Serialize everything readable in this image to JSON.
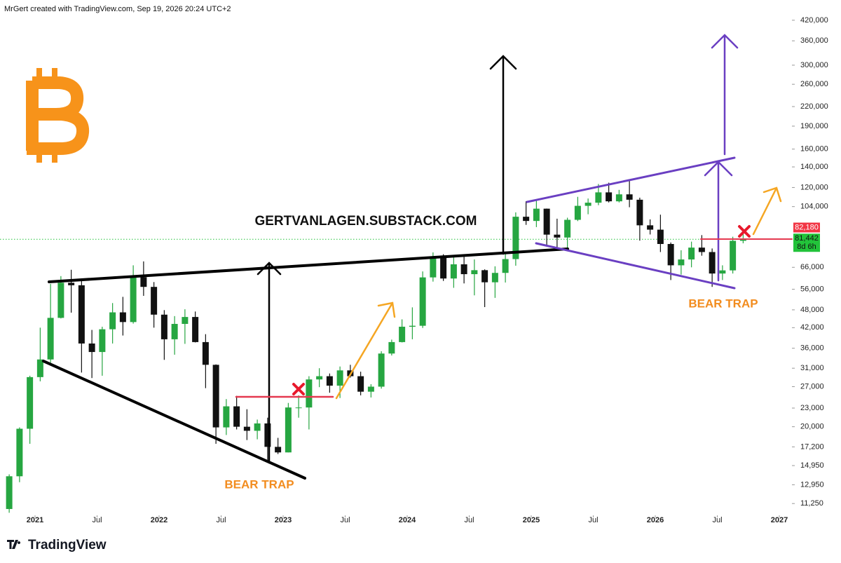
{
  "header": "MrGert created with TradingView.com, Sep 19, 2026 20:24 UTC+2",
  "footer_logo": "TradingView",
  "chart_data": {
    "type": "candlestick",
    "log_scale": true,
    "up_color": "#26a641",
    "down_color": "#111111",
    "x": [
      "2020-10",
      "2020-11",
      "2020-12",
      "2021-01",
      "2021-02",
      "2021-03",
      "2021-04",
      "2021-05",
      "2021-06",
      "2021-07",
      "2021-08",
      "2021-09",
      "2021-10",
      "2021-11",
      "2021-12",
      "2022-01",
      "2022-02",
      "2022-03",
      "2022-04",
      "2022-05",
      "2022-06",
      "2022-07",
      "2022-08",
      "2022-09",
      "2022-10",
      "2022-11",
      "2022-12",
      "2023-01",
      "2023-02",
      "2023-03",
      "2023-04",
      "2023-05",
      "2023-06",
      "2023-07",
      "2023-08",
      "2023-09",
      "2023-10",
      "2023-11",
      "2023-12",
      "2024-01",
      "2024-02",
      "2024-03",
      "2024-04",
      "2024-05",
      "2024-06",
      "2024-07",
      "2024-08",
      "2024-09",
      "2024-10",
      "2024-11",
      "2024-12",
      "2025-01",
      "2025-02",
      "2025-03",
      "2025-04",
      "2025-05",
      "2025-06",
      "2025-07",
      "2025-08",
      "2025-09",
      "2025-10",
      "2025-11",
      "2025-12",
      "2026-01",
      "2026-02",
      "2026-03",
      "2026-04",
      "2026-05",
      "2026-06",
      "2026-07",
      "2026-08",
      "2026-09"
    ],
    "open": [
      10800,
      13800,
      19700,
      29000,
      33100,
      45200,
      58800,
      57700,
      37300,
      35000,
      41500,
      47100,
      43800,
      61300,
      57000,
      46300,
      38500,
      43200,
      45500,
      37700,
      31800,
      19900,
      23300,
      20000,
      19400,
      20500,
      17200,
      16500,
      23100,
      23100,
      28500,
      29200,
      27200,
      30500,
      29200,
      26000,
      27000,
      34600,
      37700,
      42300,
      42600,
      61200,
      71300,
      60700,
      67500,
      62700,
      64600,
      59000,
      63300,
      70200,
      96400,
      93400,
      102400,
      84300,
      82500,
      94200,
      104600,
      107100,
      115700,
      108200,
      114000,
      109500,
      90400,
      87500,
      78600,
      67000,
      70000,
      76500,
      74000,
      63000,
      64500,
      80500
    ],
    "high": [
      14000,
      19900,
      29300,
      42000,
      58300,
      61800,
      64800,
      59500,
      41300,
      42300,
      50500,
      52900,
      67000,
      69000,
      59100,
      47900,
      45800,
      48200,
      47400,
      40000,
      31900,
      24600,
      25200,
      22800,
      21100,
      21400,
      18400,
      23900,
      25300,
      29200,
      31000,
      29800,
      31400,
      31800,
      30200,
      27500,
      35200,
      38400,
      44700,
      48900,
      64000,
      73800,
      72800,
      71900,
      72000,
      70000,
      65000,
      66500,
      73600,
      99600,
      108300,
      109500,
      102500,
      95000,
      95700,
      111900,
      110500,
      123200,
      124400,
      117900,
      126200,
      111200,
      94500,
      97900,
      79500,
      75000,
      80000,
      84000,
      76000,
      67000,
      83000,
      85000
    ],
    "low": [
      10500,
      13200,
      17600,
      28100,
      32300,
      45000,
      47000,
      30000,
      28800,
      29300,
      37300,
      39600,
      43300,
      53300,
      42000,
      33000,
      34300,
      37200,
      37600,
      26700,
      17600,
      18800,
      19600,
      18100,
      18200,
      15500,
      16300,
      16500,
      21400,
      19600,
      26900,
      25800,
      24800,
      28900,
      25300,
      24900,
      26600,
      34100,
      37600,
      38500,
      41900,
      59300,
      59600,
      56600,
      58500,
      53500,
      49000,
      52500,
      58900,
      66800,
      90700,
      89200,
      78200,
      76600,
      74500,
      93300,
      98200,
      105100,
      107300,
      107300,
      103500,
      80600,
      84400,
      74000,
      60000,
      62500,
      66000,
      72000,
      57000,
      60000,
      63000,
      79000
    ],
    "close": [
      13800,
      19700,
      29000,
      33100,
      45200,
      58800,
      57700,
      37300,
      35000,
      41500,
      47100,
      43800,
      61300,
      57000,
      46300,
      38500,
      43200,
      45500,
      37700,
      31800,
      19900,
      23300,
      20000,
      19400,
      20500,
      17200,
      16500,
      23100,
      23100,
      28500,
      29200,
      27200,
      30500,
      29200,
      26000,
      27000,
      34600,
      37700,
      42300,
      42600,
      61200,
      71300,
      60700,
      67500,
      62700,
      64600,
      59000,
      63300,
      70200,
      96400,
      93400,
      102400,
      84300,
      82500,
      94200,
      104600,
      107100,
      115700,
      108200,
      114000,
      109500,
      90400,
      87500,
      78600,
      67000,
      70000,
      76500,
      74000,
      63000,
      64500,
      80500,
      81442
    ],
    "xticks": [
      {
        "value": "2021-01",
        "label": "2021"
      },
      {
        "value": "2021-07",
        "label": "Jul"
      },
      {
        "value": "2022-01",
        "label": "2022"
      },
      {
        "value": "2022-07",
        "label": "Jul"
      },
      {
        "value": "2023-01",
        "label": "2023"
      },
      {
        "value": "2023-07",
        "label": "Jul"
      },
      {
        "value": "2024-01",
        "label": "2024"
      },
      {
        "value": "2024-07",
        "label": "Jul"
      },
      {
        "value": "2025-01",
        "label": "2025"
      },
      {
        "value": "2025-07",
        "label": "Jul"
      },
      {
        "value": "2026-01",
        "label": "2026"
      },
      {
        "value": "2026-07",
        "label": "Jul"
      },
      {
        "value": "2027-01",
        "label": "2027"
      }
    ],
    "ylim": [
      10300,
      440000
    ],
    "yticks": [
      {
        "value": 420000,
        "label": "420,000"
      },
      {
        "value": 360000,
        "label": "360,000"
      },
      {
        "value": 300000,
        "label": "300,000"
      },
      {
        "value": 260000,
        "label": "260,000"
      },
      {
        "value": 220000,
        "label": "220,000"
      },
      {
        "value": 190000,
        "label": "190,000"
      },
      {
        "value": 160000,
        "label": "160,000"
      },
      {
        "value": 140000,
        "label": "140,000"
      },
      {
        "value": 120000,
        "label": "120,000"
      },
      {
        "value": 104000,
        "label": "104,000"
      },
      {
        "value": 66000,
        "label": "66,000"
      },
      {
        "value": 56000,
        "label": "56,000"
      },
      {
        "value": 48000,
        "label": "48,000"
      },
      {
        "value": 42000,
        "label": "42,000"
      },
      {
        "value": 36000,
        "label": "36,000"
      },
      {
        "value": 31000,
        "label": "31,000"
      },
      {
        "value": 27000,
        "label": "27,000"
      },
      {
        "value": 23000,
        "label": "23,000"
      },
      {
        "value": 20000,
        "label": "20,000"
      },
      {
        "value": 17200,
        "label": "17,200"
      },
      {
        "value": 14950,
        "label": "14,950"
      },
      {
        "value": 12950,
        "label": "12,950"
      },
      {
        "value": 11250,
        "label": "11,250"
      }
    ],
    "price_labels": [
      {
        "value": 82180,
        "label": "82,180",
        "color": "#f23645"
      },
      {
        "value": 81442,
        "label": "81,442",
        "color": "#22c33a"
      }
    ],
    "countdown": "8d 6h",
    "annotations": [
      "GERTVANLAGEN.SUBSTACK.COM",
      "BEAR TRAP",
      "BEAR TRAP"
    ]
  }
}
